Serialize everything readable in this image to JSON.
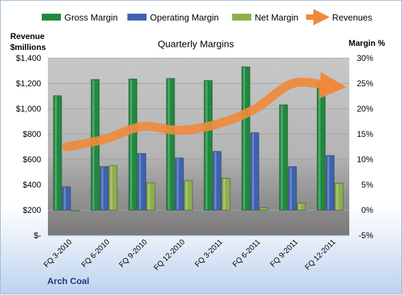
{
  "chart_data": {
    "type": "bar",
    "title": "Quarterly Margins",
    "company": "Arch Coal",
    "categories": [
      "FQ 3-2010",
      "FQ 6-2010",
      "FQ 9-2010",
      "FQ 12-2010",
      "FQ 3-2011",
      "FQ 6-2011",
      "FQ 9-2011",
      "FQ 12-2011"
    ],
    "y_left": {
      "label_line1": "Revenue",
      "label_line2": "$millions",
      "ylim": [
        0,
        1400
      ],
      "ticks": [
        0,
        200,
        400,
        600,
        800,
        1000,
        1200,
        1400
      ],
      "tick_labels": [
        "$-",
        "$200",
        "$400",
        "$600",
        "$800",
        "$1,000",
        "$1,200",
        "$1,400"
      ]
    },
    "y_right": {
      "label": "Margin %",
      "ylim": [
        -5,
        30
      ],
      "ticks": [
        -5,
        0,
        5,
        10,
        15,
        20,
        25,
        30
      ],
      "tick_labels": [
        "-5%",
        "0%",
        "5%",
        "10%",
        "15%",
        "20%",
        "25%",
        "30%"
      ]
    },
    "series": [
      {
        "name": "Gross Margin",
        "axis": "right",
        "kind": "bar",
        "color": "#1e8a3e",
        "values": [
          22.6,
          25.8,
          25.9,
          26.0,
          25.6,
          28.3,
          20.8,
          25.4
        ]
      },
      {
        "name": "Operating Margin",
        "axis": "right",
        "kind": "bar",
        "color": "#3d63b0",
        "values": [
          4.6,
          8.6,
          11.2,
          10.3,
          11.6,
          15.3,
          8.6,
          10.8
        ]
      },
      {
        "name": "Net Margin",
        "axis": "right",
        "kind": "bar",
        "color": "#8db04a",
        "values": [
          -0.2,
          8.8,
          5.4,
          5.8,
          6.3,
          0.5,
          1.4,
          5.3
        ]
      },
      {
        "name": "Revenues",
        "axis": "left",
        "kind": "line",
        "color": "#ef8a3c",
        "values": [
          700,
          760,
          860,
          830,
          880,
          1000,
          1200,
          1180
        ]
      }
    ],
    "legend_position": "top",
    "grid": true
  }
}
